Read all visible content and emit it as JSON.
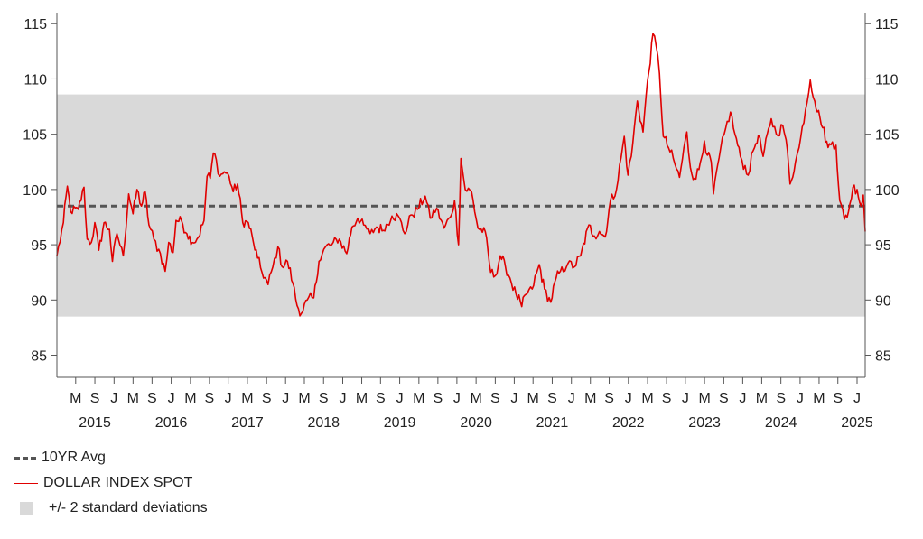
{
  "chart_data": {
    "type": "line",
    "title": "",
    "ylim": [
      83,
      116
    ],
    "y_ticks": [
      "85",
      "90",
      "95",
      "100",
      "105",
      "110",
      "115"
    ],
    "x_range": [
      "2014-12-01",
      "2025-07-10"
    ],
    "x_month_ticks": [
      {
        "date": "2015-03-01",
        "label": "M"
      },
      {
        "date": "2015-06-01",
        "label": "S"
      },
      {
        "date": "2015-09-01",
        "label": "J"
      },
      {
        "date": "2015-12-01",
        "label": "M"
      },
      {
        "date": "2016-03-01",
        "label": "S"
      },
      {
        "date": "2016-06-01",
        "label": "J"
      },
      {
        "date": "2016-09-01",
        "label": "M"
      },
      {
        "date": "2016-12-01",
        "label": "S"
      },
      {
        "date": "2017-03-01",
        "label": "J"
      },
      {
        "date": "2017-06-01",
        "label": "M"
      },
      {
        "date": "2017-09-01",
        "label": "S"
      },
      {
        "date": "2017-12-01",
        "label": "J"
      },
      {
        "date": "2018-03-01",
        "label": "M"
      },
      {
        "date": "2018-06-01",
        "label": "S"
      },
      {
        "date": "2018-09-01",
        "label": "J"
      },
      {
        "date": "2018-12-01",
        "label": "M"
      },
      {
        "date": "2019-03-01",
        "label": "S"
      },
      {
        "date": "2019-06-01",
        "label": "J"
      },
      {
        "date": "2019-09-01",
        "label": "M"
      },
      {
        "date": "2019-12-01",
        "label": "S"
      },
      {
        "date": "2020-03-01",
        "label": "J"
      },
      {
        "date": "2020-06-01",
        "label": "M"
      },
      {
        "date": "2020-09-01",
        "label": "S"
      },
      {
        "date": "2020-12-01",
        "label": "J"
      },
      {
        "date": "2021-03-01",
        "label": "M"
      },
      {
        "date": "2021-06-01",
        "label": "S"
      },
      {
        "date": "2021-09-01",
        "label": "J"
      },
      {
        "date": "2021-12-01",
        "label": "M"
      },
      {
        "date": "2022-03-01",
        "label": "S"
      },
      {
        "date": "2022-06-01",
        "label": "J"
      },
      {
        "date": "2022-09-01",
        "label": "M"
      },
      {
        "date": "2022-12-01",
        "label": "S"
      },
      {
        "date": "2023-03-01",
        "label": "J"
      },
      {
        "date": "2023-06-01",
        "label": "M"
      },
      {
        "date": "2023-09-01",
        "label": "S"
      },
      {
        "date": "2023-12-01",
        "label": "J"
      },
      {
        "date": "2024-03-01",
        "label": "M"
      },
      {
        "date": "2024-06-01",
        "label": "S"
      },
      {
        "date": "2024-09-01",
        "label": "J"
      },
      {
        "date": "2024-12-01",
        "label": "M"
      },
      {
        "date": "2025-03-01",
        "label": "S"
      },
      {
        "date": "2025-06-01",
        "label": "J"
      }
    ],
    "x_year_labels": [
      {
        "date": "2015-06-01",
        "label": "2015"
      },
      {
        "date": "2016-06-01",
        "label": "2016"
      },
      {
        "date": "2017-06-01",
        "label": "2017"
      },
      {
        "date": "2018-06-01",
        "label": "2018"
      },
      {
        "date": "2019-06-01",
        "label": "2019"
      },
      {
        "date": "2020-06-01",
        "label": "2020"
      },
      {
        "date": "2021-06-01",
        "label": "2021"
      },
      {
        "date": "2022-06-01",
        "label": "2022"
      },
      {
        "date": "2023-06-01",
        "label": "2023"
      },
      {
        "date": "2024-06-01",
        "label": "2024"
      },
      {
        "date": "2025-06-01",
        "label": "2025"
      }
    ],
    "band": {
      "lower": 88.5,
      "upper": 108.6,
      "color": "#d9d9d9"
    },
    "average": {
      "value": 98.5,
      "color": "#555555"
    },
    "series": [
      {
        "name": "DOLLAR INDEX SPOT",
        "color": "#e00000",
        "x": [
          "2014-12-01",
          "2015-01-01",
          "2015-01-20",
          "2015-02-05",
          "2015-03-13",
          "2015-04-10",
          "2015-04-25",
          "2015-05-15",
          "2015-06-01",
          "2015-06-20",
          "2015-07-15",
          "2015-08-10",
          "2015-08-24",
          "2015-09-15",
          "2015-10-15",
          "2015-11-10",
          "2015-12-01",
          "2015-12-20",
          "2016-01-10",
          "2016-01-28",
          "2016-02-15",
          "2016-03-10",
          "2016-04-10",
          "2016-05-03",
          "2016-05-20",
          "2016-06-10",
          "2016-06-24",
          "2016-07-20",
          "2016-08-15",
          "2016-09-10",
          "2016-10-10",
          "2016-11-05",
          "2016-11-20",
          "2016-12-05",
          "2016-12-20",
          "2017-01-03",
          "2017-01-20",
          "2017-02-10",
          "2017-03-05",
          "2017-03-25",
          "2017-04-15",
          "2017-05-10",
          "2017-06-05",
          "2017-06-30",
          "2017-07-20",
          "2017-08-10",
          "2017-09-08",
          "2017-10-01",
          "2017-10-25",
          "2017-11-15",
          "2017-12-10",
          "2018-01-05",
          "2018-01-25",
          "2018-02-15",
          "2018-03-15",
          "2018-04-15",
          "2018-05-10",
          "2018-06-10",
          "2018-07-10",
          "2018-08-15",
          "2018-09-20",
          "2018-10-15",
          "2018-11-12",
          "2018-12-10",
          "2019-01-10",
          "2019-02-10",
          "2019-03-15",
          "2019-04-25",
          "2019-05-25",
          "2019-06-25",
          "2019-07-25",
          "2019-08-25",
          "2019-10-01",
          "2019-10-25",
          "2019-11-25",
          "2019-12-30",
          "2020-01-30",
          "2020-02-19",
          "2020-03-09",
          "2020-03-20",
          "2020-04-10",
          "2020-05-10",
          "2020-06-10",
          "2020-07-15",
          "2020-08-10",
          "2020-09-01",
          "2020-09-25",
          "2020-10-20",
          "2020-11-10",
          "2020-12-10",
          "2021-01-06",
          "2021-01-25",
          "2021-02-25",
          "2021-03-31",
          "2021-04-25",
          "2021-05-25",
          "2021-06-20",
          "2021-07-10",
          "2021-08-15",
          "2021-09-15",
          "2021-10-15",
          "2021-11-24",
          "2021-12-20",
          "2022-01-13",
          "2022-02-10",
          "2022-03-07",
          "2022-04-05",
          "2022-05-12",
          "2022-05-30",
          "2022-06-15",
          "2022-07-14",
          "2022-08-10",
          "2022-08-25",
          "2022-09-27",
          "2022-10-12",
          "2022-10-28",
          "2022-11-15",
          "2022-12-10",
          "2023-01-10",
          "2023-02-01",
          "2023-03-08",
          "2023-03-25",
          "2023-04-14",
          "2023-05-05",
          "2023-05-31",
          "2023-06-15",
          "2023-07-03",
          "2023-07-14",
          "2023-08-10",
          "2023-09-10",
          "2023-10-03",
          "2023-10-25",
          "2023-11-20",
          "2023-12-27",
          "2024-01-20",
          "2024-02-14",
          "2024-03-08",
          "2024-04-16",
          "2024-05-10",
          "2024-06-10",
          "2024-06-26",
          "2024-07-15",
          "2024-08-10",
          "2024-08-27",
          "2024-09-27",
          "2024-10-20",
          "2024-11-10",
          "2024-12-05",
          "2025-01-13",
          "2025-02-03",
          "2025-02-20",
          "2025-03-10",
          "2025-04-01",
          "2025-04-21",
          "2025-05-12",
          "2025-06-01",
          "2025-06-20",
          "2025-07-01",
          "2025-07-10"
        ],
        "y": [
          94.0,
          97.0,
          100.3,
          98.0,
          98.2,
          100.2,
          95.5,
          95.2,
          97.0,
          94.5,
          97.0,
          96.4,
          93.5,
          96.0,
          94.0,
          99.6,
          97.8,
          100.0,
          98.5,
          99.8,
          96.8,
          95.5,
          94.2,
          92.6,
          95.2,
          94.3,
          97.2,
          97.2,
          96.0,
          95.2,
          95.7,
          97.2,
          101.2,
          101.0,
          103.3,
          102.7,
          101.2,
          101.6,
          101.2,
          99.8,
          100.5,
          97.0,
          97.0,
          95.2,
          93.8,
          92.5,
          91.4,
          93.0,
          94.8,
          93.0,
          93.5,
          91.5,
          89.5,
          88.8,
          90.0,
          90.2,
          93.5,
          94.8,
          95.0,
          95.5,
          94.2,
          96.6,
          97.4,
          96.8,
          96.0,
          96.6,
          96.3,
          97.6,
          97.6,
          96.0,
          97.7,
          98.2,
          99.4,
          97.4,
          98.3,
          96.5,
          97.5,
          99.0,
          95.0,
          102.8,
          100.0,
          99.8,
          96.5,
          96.2,
          92.5,
          92.2,
          94.0,
          93.0,
          92.0,
          90.5,
          89.4,
          90.5,
          91.0,
          93.2,
          91.0,
          89.8,
          92.0,
          92.6,
          93.3,
          93.0,
          94.0,
          96.8,
          95.8,
          96.2,
          95.7,
          99.0,
          100.0,
          104.8,
          101.3,
          103.0,
          108.0,
          105.2,
          108.5,
          114.1,
          113.0,
          110.5,
          104.8,
          103.8,
          102.3,
          101.1,
          105.2,
          102.0,
          101.0,
          101.8,
          104.4,
          103.1,
          102.5,
          99.6,
          102.9,
          105.5,
          107.0,
          105.0,
          103.0,
          101.3,
          103.5,
          104.9,
          103.0,
          106.4,
          105.0,
          105.8,
          104.5,
          100.5,
          102.5,
          103.8,
          107.2,
          109.9,
          108.0,
          106.5,
          103.8,
          104.3,
          104.0,
          99.0,
          97.3,
          98.0,
          100.2,
          100.0,
          98.5,
          99.5,
          96.2
        ]
      }
    ],
    "legend": [
      {
        "type": "dashed-line",
        "label": "10YR Avg",
        "color": "#555555"
      },
      {
        "type": "line",
        "label": "DOLLAR INDEX SPOT",
        "color": "#e00000"
      },
      {
        "type": "box",
        "label": "+/- 2 standard deviations",
        "color": "#d9d9d9"
      }
    ],
    "legend_position": "bottom-left",
    "grid": false
  }
}
